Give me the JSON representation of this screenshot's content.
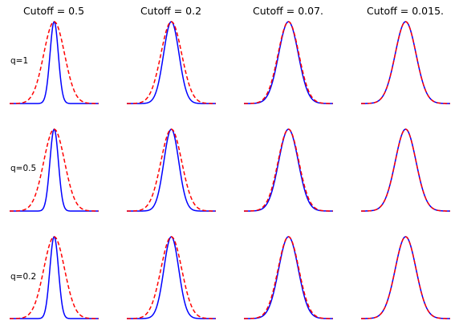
{
  "chart_data": {
    "type": "line",
    "layout": "grid 3x4 small multiples, no axes/ticks",
    "column_titles": [
      "Cutoff = 0.5",
      "Cutoff = 0.2",
      "Cutoff = 0.07.",
      "Cutoff = 0.015."
    ],
    "row_labels": [
      "q=1",
      "q=0.5",
      "q=0.2"
    ],
    "x_range": [
      -3,
      3
    ],
    "y_range": [
      0,
      1
    ],
    "series_styles": [
      {
        "role": "reference",
        "color": "#ff0000",
        "style": "dashed"
      },
      {
        "role": "approximation",
        "color": "#0000ff",
        "style": "solid"
      }
    ],
    "reference_curve": {
      "shape": "gaussian",
      "center": 0,
      "sigma": 0.7,
      "peak": 1.0
    },
    "panels": [
      [
        {
          "row": 0,
          "col": 0,
          "blue_shape": "narrow",
          "blue_sigma": 0.28,
          "blue_peak": 1.0,
          "dip_sep": 0
        },
        {
          "row": 0,
          "col": 1,
          "blue_shape": "narrow",
          "blue_sigma": 0.52,
          "blue_peak": 1.0,
          "dip_sep": 0
        },
        {
          "row": 0,
          "col": 2,
          "blue_shape": "match",
          "blue_sigma": 0.66,
          "blue_peak": 1.0,
          "dip_sep": 0
        },
        {
          "row": 0,
          "col": 3,
          "blue_shape": "match",
          "blue_sigma": 0.7,
          "blue_peak": 1.0,
          "dip_sep": 0
        }
      ],
      [
        {
          "row": 1,
          "col": 0,
          "blue_shape": "flat-top",
          "blue_sigma": 0.26,
          "blue_peak": 1.0,
          "dip_sep": 0.22
        },
        {
          "row": 1,
          "col": 1,
          "blue_shape": "narrow",
          "blue_sigma": 0.5,
          "blue_peak": 1.0,
          "dip_sep": 0.06
        },
        {
          "row": 1,
          "col": 2,
          "blue_shape": "match",
          "blue_sigma": 0.66,
          "blue_peak": 1.0,
          "dip_sep": 0
        },
        {
          "row": 1,
          "col": 3,
          "blue_shape": "match",
          "blue_sigma": 0.7,
          "blue_peak": 1.0,
          "dip_sep": 0
        }
      ],
      [
        {
          "row": 2,
          "col": 0,
          "blue_shape": "double-peak",
          "blue_sigma": 0.25,
          "blue_peak": 1.0,
          "dip_sep": 0.26
        },
        {
          "row": 2,
          "col": 1,
          "blue_shape": "narrow",
          "blue_sigma": 0.5,
          "blue_peak": 1.0,
          "dip_sep": 0.05
        },
        {
          "row": 2,
          "col": 2,
          "blue_shape": "match",
          "blue_sigma": 0.66,
          "blue_peak": 1.0,
          "dip_sep": 0
        },
        {
          "row": 2,
          "col": 3,
          "blue_shape": "match",
          "blue_sigma": 0.7,
          "blue_peak": 1.0,
          "dip_sep": 0
        }
      ]
    ],
    "grid": false,
    "legend": "none"
  }
}
